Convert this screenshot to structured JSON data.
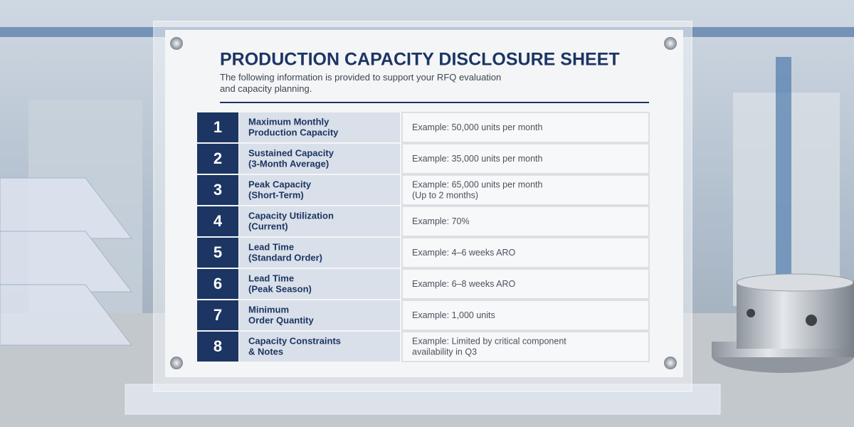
{
  "header": {
    "title": "PRODUCTION CAPACITY DISCLOSURE SHEET",
    "subtitle_lines": [
      "The following information is provided to support your RFQ evaluation",
      "and capacity planning."
    ]
  },
  "table": {
    "rows": [
      {
        "number": "1",
        "label_lines": [
          "Maximum Monthly",
          "Production Capacity"
        ],
        "value_lines": [
          "Example: 50,000 units per month"
        ]
      },
      {
        "number": "2",
        "label_lines": [
          "Sustained Capacity",
          "(3-Month Average)"
        ],
        "value_lines": [
          "Example: 35,000 units per month"
        ]
      },
      {
        "number": "3",
        "label_lines": [
          "Peak Capacity",
          "(Short-Term)"
        ],
        "value_lines": [
          "Example: 65,000 units per month",
          "(Up to 2 months)"
        ]
      },
      {
        "number": "4",
        "label_lines": [
          "Capacity Utilization",
          "(Current)"
        ],
        "value_lines": [
          "Example: 70%"
        ]
      },
      {
        "number": "5",
        "label_lines": [
          "Lead Time",
          "(Standard Order)"
        ],
        "value_lines": [
          "Example: 4–6 weeks ARO"
        ]
      },
      {
        "number": "6",
        "label_lines": [
          "Lead Time",
          "(Peak Season)"
        ],
        "value_lines": [
          "Example: 6–8 weeks ARO"
        ]
      },
      {
        "number": "7",
        "label_lines": [
          "Minimum",
          "Order Quantity"
        ],
        "value_lines": [
          "Example: 1,000 units"
        ]
      },
      {
        "number": "8",
        "label_lines": [
          "Capacity Constraints",
          "& Notes"
        ],
        "value_lines": [
          "Example: Limited by critical component",
          "availability in Q3"
        ]
      }
    ]
  }
}
